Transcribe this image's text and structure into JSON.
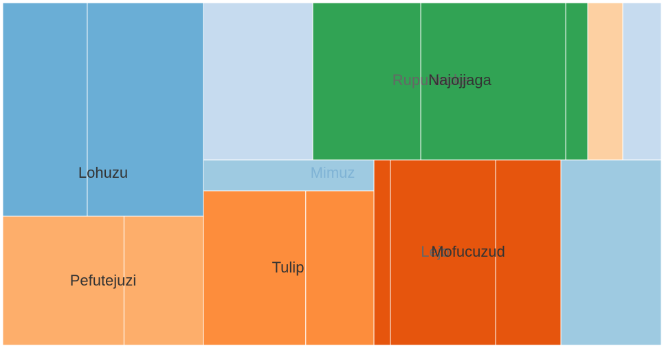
{
  "chart_data": {
    "type": "treemap",
    "title": "",
    "colors": {
      "blue": "#6aaed6",
      "pale_blue": "#c6dbef",
      "light_blue": "#9ecae1",
      "green": "#31a354",
      "light_orange": "#fdae6b",
      "orange": "#fd8d3c",
      "dark_orange": "#e6550d",
      "peach": "#fdd0a2"
    },
    "groups": [
      {
        "label": "Lohuzu",
        "value": 15.2,
        "color": "blue",
        "label_color": "#333333",
        "cells": [
          {
            "value": 6.4
          },
          {
            "value": 8.8
          }
        ]
      },
      {
        "label": "Pefutejuzi",
        "value": 9.6,
        "color": "light_orange",
        "label_color": "#333333",
        "cells": [
          {
            "value": 5.8
          },
          {
            "value": 3.8
          }
        ]
      },
      {
        "label": "Mimuz",
        "value": 2.0,
        "color": "light_blue",
        "label_color": "#7fb3d5",
        "cells": [
          {
            "value": 2.0
          }
        ]
      },
      {
        "label": "Tulip",
        "value": 7.5,
        "color": "orange",
        "label_color": "#333333",
        "cells": [
          {
            "value": 4.5
          },
          {
            "value": 3.0
          }
        ]
      },
      {
        "label": "Rupuhiroka",
        "value": 6.1,
        "color": "pale_blue",
        "label_color": "#666666",
        "cells": [
          {
            "value": 6.1
          }
        ]
      },
      {
        "label": "Najojjaga",
        "value": 9.6,
        "color": "green",
        "label_color": "#333333",
        "cells": [
          {
            "value": 4.1
          },
          {
            "value": 5.5
          }
        ]
      },
      {
        "label": "Lejo",
        "value": 2.3,
        "color": "dark_orange",
        "label_color": "#666666",
        "cells": [
          {
            "value": 2.3
          }
        ]
      },
      {
        "label": "Mofucuzud",
        "value": 9.4,
        "color": "dark_orange",
        "label_color": "#333333",
        "cells": [
          {
            "value": 5.8
          },
          {
            "value": 3.6
          }
        ]
      },
      {
        "label": "",
        "value": 0.9,
        "color": "green",
        "cells": [
          {
            "value": 0.9
          }
        ]
      },
      {
        "label": "",
        "value": 1.4,
        "color": "peach",
        "cells": [
          {
            "value": 1.4
          }
        ]
      },
      {
        "label": "",
        "value": 1.5,
        "color": "pale_blue",
        "cells": [
          {
            "value": 1.5
          }
        ]
      },
      {
        "label": "",
        "value": 7.8,
        "color": "light_blue",
        "cells": [
          {
            "value": 7.8
          }
        ]
      }
    ]
  }
}
